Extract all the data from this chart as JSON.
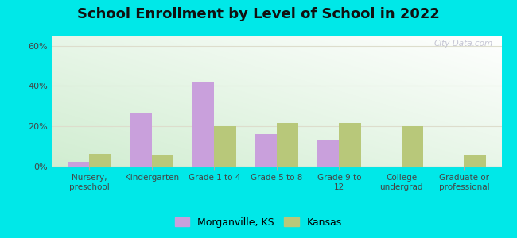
{
  "title": "School Enrollment by Level of School in 2022",
  "categories": [
    "Nursery,\npreschool",
    "Kindergarten",
    "Grade 1 to 4",
    "Grade 5 to 8",
    "Grade 9 to\n12",
    "College\nundergrad",
    "Graduate or\nprofessional"
  ],
  "morganville_values": [
    2.5,
    26.5,
    42.0,
    16.0,
    13.5,
    0.0,
    0.0
  ],
  "kansas_values": [
    6.5,
    5.5,
    20.0,
    21.5,
    21.5,
    20.0,
    6.0
  ],
  "morganville_color": "#c9a0dc",
  "kansas_color": "#b8c87a",
  "ylim": [
    0,
    65
  ],
  "yticks": [
    0,
    20,
    40,
    60
  ],
  "ytick_labels": [
    "0%",
    "20%",
    "40%",
    "60%"
  ],
  "outer_background": "#00e8e8",
  "watermark": "City-Data.com",
  "legend_label_1": "Morganville, KS",
  "legend_label_2": "Kansas",
  "title_fontsize": 13,
  "bar_width": 0.35
}
